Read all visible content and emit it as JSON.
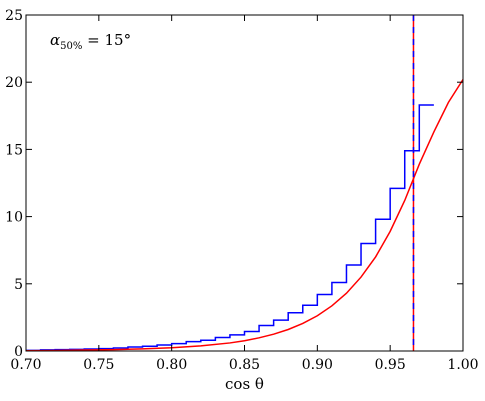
{
  "chart_data": {
    "type": "line",
    "title": "",
    "xlabel": "cos θ",
    "ylabel": "",
    "xlim": [
      0.7,
      1.0
    ],
    "ylim": [
      0,
      25
    ],
    "xticks": [
      "0.70",
      "0.75",
      "0.80",
      "0.85",
      "0.90",
      "0.95",
      "1.00"
    ],
    "yticks": [
      "0",
      "5",
      "10",
      "15",
      "20",
      "25"
    ],
    "grid": false,
    "legend": "none",
    "annotation": {
      "alpha": "α",
      "subscript": "50%",
      "rest": " = 15°"
    },
    "series": [
      {
        "kind": "step",
        "color": "#0000ff",
        "bin_width": 0.01,
        "bin_edges_start": 0.7,
        "values": [
          0.05,
          0.08,
          0.1,
          0.12,
          0.15,
          0.18,
          0.22,
          0.3,
          0.35,
          0.45,
          0.55,
          0.7,
          0.8,
          1.0,
          1.2,
          1.45,
          1.9,
          2.3,
          2.85,
          3.4,
          4.2,
          5.1,
          6.4,
          8.0,
          9.8,
          12.1,
          14.9,
          18.3
        ]
      },
      {
        "kind": "curve",
        "color": "#ff0000",
        "x": [
          0.7,
          0.72,
          0.74,
          0.76,
          0.78,
          0.8,
          0.82,
          0.84,
          0.85,
          0.86,
          0.87,
          0.88,
          0.89,
          0.9,
          0.91,
          0.92,
          0.93,
          0.94,
          0.95,
          0.96,
          0.97,
          0.98,
          0.99,
          1.0
        ],
        "y": [
          0.02,
          0.04,
          0.07,
          0.1,
          0.16,
          0.24,
          0.38,
          0.6,
          0.76,
          0.98,
          1.25,
          1.6,
          2.05,
          2.62,
          3.36,
          4.3,
          5.5,
          7.0,
          8.9,
          11.2,
          13.9,
          16.3,
          18.5,
          20.2
        ]
      }
    ],
    "vlines": [
      {
        "x": 0.966,
        "colors": [
          "#ff0000",
          "#0000ff"
        ],
        "style": "dashed"
      }
    ]
  }
}
